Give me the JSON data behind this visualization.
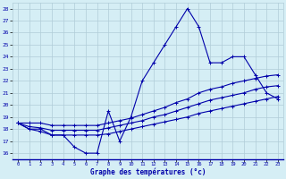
{
  "title": "Graphe des températures (°c)",
  "bg_color": "#d5eef5",
  "line_color": "#0000aa",
  "grid_color": "#b0ccd8",
  "ylim": [
    15.5,
    28.5
  ],
  "xlim": [
    -0.5,
    23.5
  ],
  "yticks": [
    16,
    17,
    18,
    19,
    20,
    21,
    22,
    23,
    24,
    25,
    26,
    27,
    28
  ],
  "xticks": [
    0,
    1,
    2,
    3,
    4,
    5,
    6,
    7,
    8,
    9,
    10,
    11,
    12,
    13,
    14,
    15,
    16,
    17,
    18,
    19,
    20,
    21,
    22,
    23
  ],
  "hours": [
    0,
    1,
    2,
    3,
    4,
    5,
    6,
    7,
    8,
    9,
    10,
    11,
    12,
    13,
    14,
    15,
    16,
    17,
    18,
    19,
    20,
    21,
    22,
    23
  ],
  "temp_instant": [
    18.5,
    18.0,
    18.0,
    17.5,
    17.5,
    16.5,
    16.0,
    16.0,
    19.5,
    17.0,
    19.0,
    22.0,
    23.5,
    25.0,
    26.5,
    28.0,
    26.5,
    23.5,
    23.5,
    24.0,
    24.0,
    22.5,
    21.0,
    20.5
  ],
  "temp_max": [
    18.5,
    18.5,
    18.5,
    18.3,
    18.3,
    18.3,
    18.3,
    18.3,
    18.5,
    18.7,
    18.9,
    19.2,
    19.5,
    19.8,
    20.2,
    20.5,
    21.0,
    21.3,
    21.5,
    21.8,
    22.0,
    22.2,
    22.4,
    22.5
  ],
  "temp_min": [
    18.5,
    18.0,
    17.8,
    17.5,
    17.5,
    17.5,
    17.5,
    17.5,
    17.6,
    17.8,
    18.0,
    18.2,
    18.4,
    18.6,
    18.8,
    19.0,
    19.3,
    19.5,
    19.7,
    19.9,
    20.1,
    20.3,
    20.5,
    20.7
  ],
  "temp_avg": [
    18.5,
    18.2,
    18.1,
    17.9,
    17.9,
    17.9,
    17.9,
    17.9,
    18.1,
    18.3,
    18.5,
    18.7,
    19.0,
    19.2,
    19.5,
    19.8,
    20.1,
    20.4,
    20.6,
    20.8,
    21.0,
    21.3,
    21.5,
    21.6
  ]
}
